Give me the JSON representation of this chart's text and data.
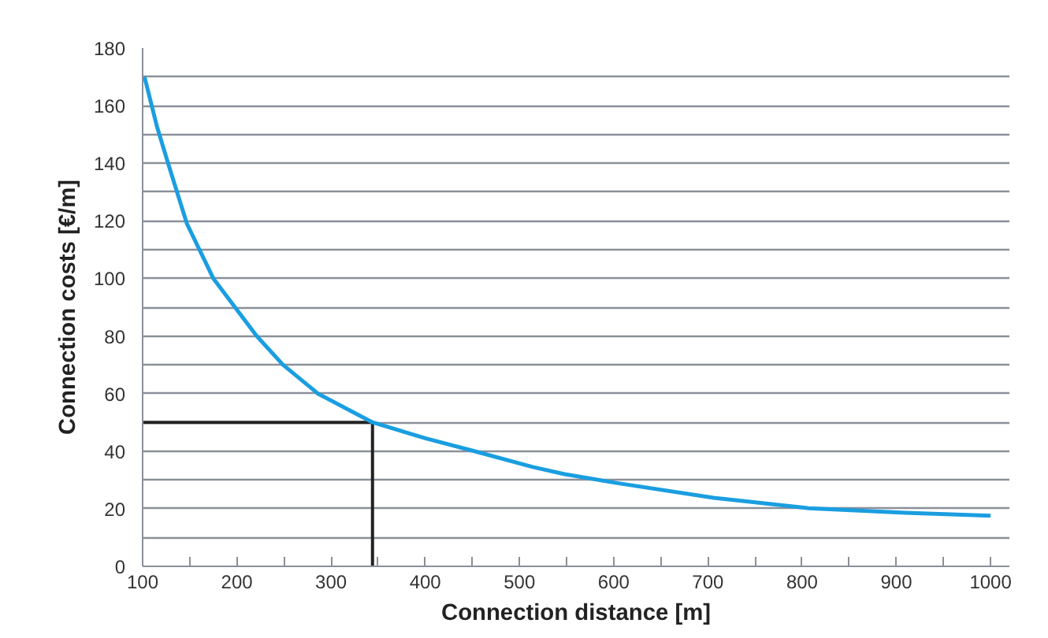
{
  "chart_data": {
    "type": "line",
    "xlabel": "Connection distance [m]",
    "ylabel": "Connection costs [€/m]",
    "x": [
      102,
      115,
      127,
      147,
      175,
      198,
      221,
      249,
      286,
      344,
      400,
      452,
      514,
      548,
      604,
      706,
      807,
      909,
      1000
    ],
    "series": [
      {
        "color": "#1a9ee0",
        "values": [
          170,
          153,
          140,
          119,
          100,
          90,
          80,
          70,
          60,
          50,
          44.5,
          40,
          34.5,
          32,
          28.9,
          23.8,
          20.2,
          18.6,
          17.6
        ]
      }
    ],
    "xlim": [
      100,
      1020
    ],
    "ylim": [
      0,
      180
    ],
    "xticks": [
      100,
      {
        "value": 150,
        "label": null
      },
      200,
      {
        "value": 250,
        "label": null
      },
      300,
      {
        "value": 350,
        "label": null
      },
      400,
      {
        "value": 450,
        "label": null
      },
      500,
      {
        "value": 550,
        "label": null
      },
      600,
      {
        "value": 650,
        "label": null
      },
      700,
      {
        "value": 750,
        "label": null
      },
      800,
      {
        "value": 850,
        "label": null
      },
      900,
      {
        "value": 950,
        "label": null
      },
      1000
    ],
    "yticks": [
      0,
      {
        "value": 10,
        "label": null
      },
      20,
      {
        "value": 30,
        "label": null
      },
      40,
      {
        "value": 50,
        "label": null
      },
      60,
      {
        "value": 70,
        "label": null
      },
      80,
      {
        "value": 90,
        "label": null
      },
      100,
      {
        "value": 110,
        "label": null
      },
      120,
      {
        "value": 130,
        "label": null
      },
      140,
      {
        "value": 150,
        "label": null
      },
      160,
      {
        "value": 170,
        "label": null
      },
      180
    ],
    "grid": "y",
    "marker": "none",
    "line_style": "solid",
    "ref_lines": [
      {
        "axis": "x",
        "value": 344,
        "color": "#222222"
      },
      {
        "axis": "y",
        "value": 50,
        "color": "#222222"
      }
    ]
  }
}
